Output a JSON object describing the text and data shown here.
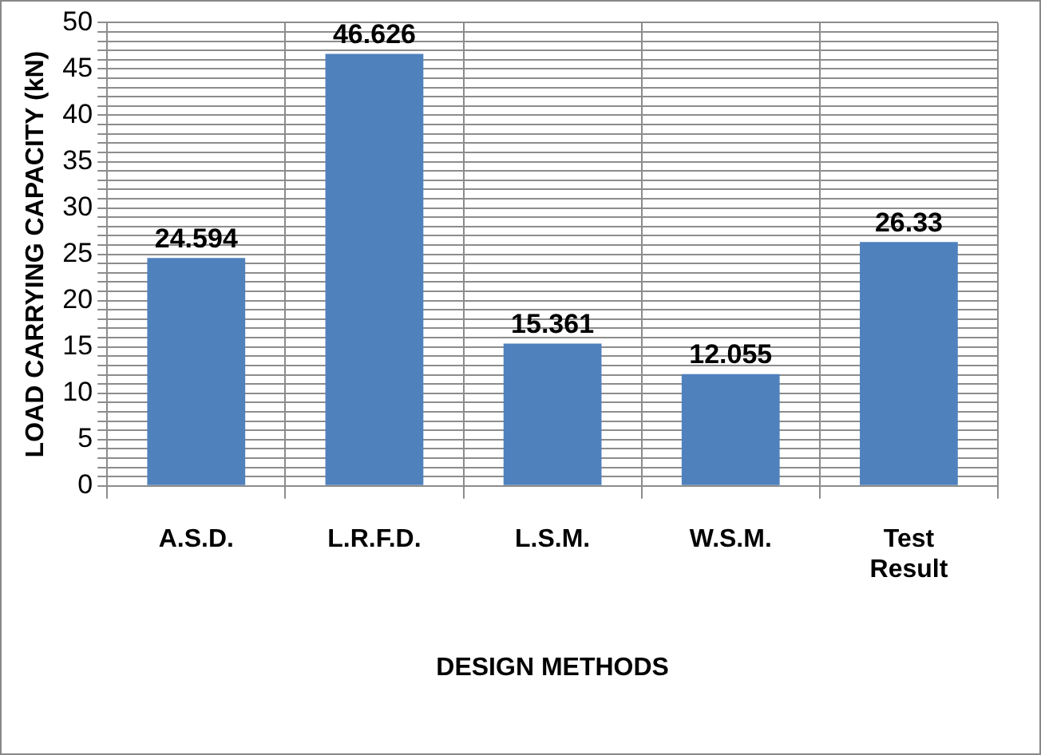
{
  "chart_data": {
    "type": "bar",
    "xlabel": "DESIGN METHODS",
    "ylabel": "LOAD CARRYING CAPACITY (kN)",
    "categories": [
      "A.S.D.",
      "L.R.F.D.",
      "L.S.M.",
      "W.S.M.",
      "Test Result"
    ],
    "values": [
      24.594,
      46.626,
      15.361,
      12.055,
      26.33
    ],
    "color": "#4f81bd",
    "ylim": [
      0,
      50
    ],
    "yticks": [
      0,
      {
        "value": 1,
        "label": null
      },
      {
        "value": 2,
        "label": null
      },
      {
        "value": 3,
        "label": null
      },
      {
        "value": 4,
        "label": null
      },
      5,
      {
        "value": 6,
        "label": null
      },
      {
        "value": 7,
        "label": null
      },
      {
        "value": 8,
        "label": null
      },
      {
        "value": 9,
        "label": null
      },
      10,
      {
        "value": 11,
        "label": null
      },
      {
        "value": 12,
        "label": null
      },
      {
        "value": 13,
        "label": null
      },
      {
        "value": 14,
        "label": null
      },
      15,
      {
        "value": 16,
        "label": null
      },
      {
        "value": 17,
        "label": null
      },
      {
        "value": 18,
        "label": null
      },
      {
        "value": 19,
        "label": null
      },
      20,
      {
        "value": 21,
        "label": null
      },
      {
        "value": 22,
        "label": null
      },
      {
        "value": 23,
        "label": null
      },
      {
        "value": 24,
        "label": null
      },
      25,
      {
        "value": 26,
        "label": null
      },
      {
        "value": 27,
        "label": null
      },
      {
        "value": 28,
        "label": null
      },
      {
        "value": 29,
        "label": null
      },
      30,
      {
        "value": 31,
        "label": null
      },
      {
        "value": 32,
        "label": null
      },
      {
        "value": 33,
        "label": null
      },
      {
        "value": 34,
        "label": null
      },
      35,
      {
        "value": 36,
        "label": null
      },
      {
        "value": 37,
        "label": null
      },
      {
        "value": 38,
        "label": null
      },
      {
        "value": 39,
        "label": null
      },
      40,
      {
        "value": 41,
        "label": null
      },
      {
        "value": 42,
        "label": null
      },
      {
        "value": 43,
        "label": null
      },
      {
        "value": 44,
        "label": null
      },
      45,
      {
        "value": 46,
        "label": null
      },
      {
        "value": 47,
        "label": null
      },
      {
        "value": 48,
        "label": null
      },
      {
        "value": 49,
        "label": null
      },
      50
    ],
    "grid": true,
    "data_labels": true
  }
}
